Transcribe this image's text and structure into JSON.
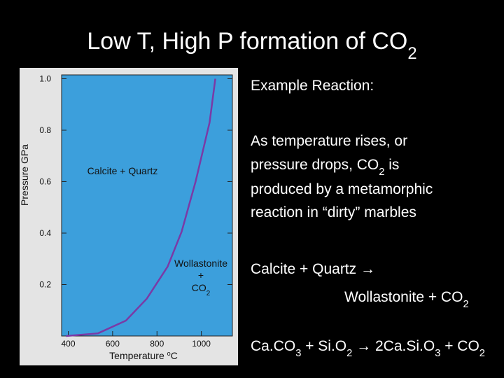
{
  "title": [
    {
      "t": "Low T, High P formation of CO"
    },
    {
      "t": "2",
      "sub": true
    }
  ],
  "text": [
    [
      {
        "t": "Example Reaction:"
      }
    ],
    [
      {
        "t": "As temperature rises, or"
      }
    ],
    [
      {
        "t": "pressure drops, CO"
      },
      {
        "t": "2",
        "sub": true
      },
      {
        "t": " is"
      }
    ],
    [
      {
        "t": "produced by a metamorphic"
      }
    ],
    [
      {
        "t": "reaction in “dirty” marbles"
      }
    ],
    [
      {
        "t": "Calcite + Quartz →"
      }
    ],
    [
      {
        "t": "Wollastonite + CO"
      },
      {
        "t": "2",
        "sub": true
      }
    ],
    [
      {
        "t": "Ca.CO"
      },
      {
        "t": "3",
        "sub": true
      },
      {
        "t": " + Si.O"
      },
      {
        "t": "2",
        "sub": true
      },
      {
        "t": " → 2Ca.Si.O"
      },
      {
        "t": "3",
        "sub": true
      },
      {
        "t": " + CO"
      },
      {
        "t": "2",
        "sub": true
      }
    ]
  ],
  "chart_data": {
    "type": "line",
    "x_label": [
      {
        "t": "Temperature "
      },
      {
        "t": "o",
        "sup": true
      },
      {
        "t": "C"
      }
    ],
    "y_label": [
      {
        "t": "Pressure GPa"
      }
    ],
    "x": [
      390,
      533,
      660,
      754,
      848,
      911,
      974,
      1037,
      1063
    ],
    "series": [
      {
        "color": "#7a3aa6",
        "values": [
          0,
          0.01,
          0.06,
          0.145,
          0.27,
          0.405,
          0.6,
          0.83,
          1.0
        ]
      }
    ],
    "xlim": [
      370,
      1140
    ],
    "ylim": [
      0,
      1.015
    ],
    "xticks": [
      400,
      600,
      800,
      1000
    ],
    "yticks": [
      0.2,
      0.4,
      0.6,
      0.8,
      {
        "value": 1,
        "label": "1.0"
      }
    ],
    "background": "#3c9fdc",
    "annotations": [
      [
        {
          "t": "Calcite + Quartz"
        }
      ],
      [
        {
          "t": "Wollastonite"
        }
      ],
      [
        {
          "t": "+"
        }
      ],
      [
        {
          "t": "CO"
        },
        {
          "t": "2",
          "sub": true
        }
      ]
    ]
  }
}
